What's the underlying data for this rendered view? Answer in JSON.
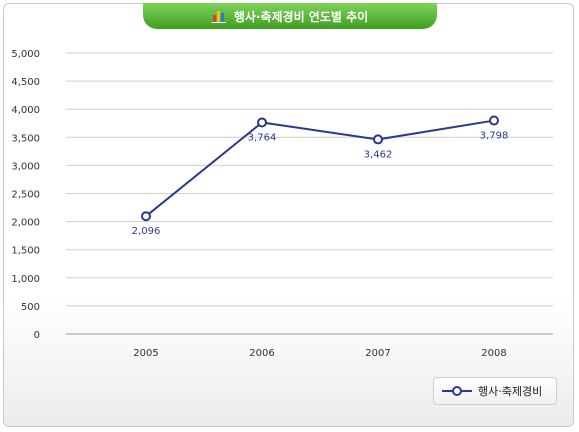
{
  "title": "행사·축제경비 연도별 추이",
  "icon": "bar-chart-icon",
  "colors": {
    "series": "#2b3a8f",
    "tab": "#4caf2a",
    "grid": "#cfcfcf"
  },
  "chart_data": {
    "type": "line",
    "categories": [
      "2005",
      "2006",
      "2007",
      "2008"
    ],
    "series": [
      {
        "name": "행사·축제경비",
        "values": [
          2096,
          3764,
          3462,
          3798
        ],
        "labels": [
          "2,096",
          "3,764",
          "3,462",
          "3,798"
        ]
      }
    ],
    "ylim": [
      0,
      5000
    ],
    "yticks": [
      0,
      500,
      1000,
      1500,
      2000,
      2500,
      3000,
      3500,
      4000,
      4500,
      5000
    ],
    "ytick_labels": [
      "0",
      "500",
      "1,000",
      "1,500",
      "2,000",
      "2,500",
      "3,000",
      "3,500",
      "4,000",
      "4,500",
      "5,000"
    ],
    "grid": true,
    "legend": "bottom-right"
  }
}
